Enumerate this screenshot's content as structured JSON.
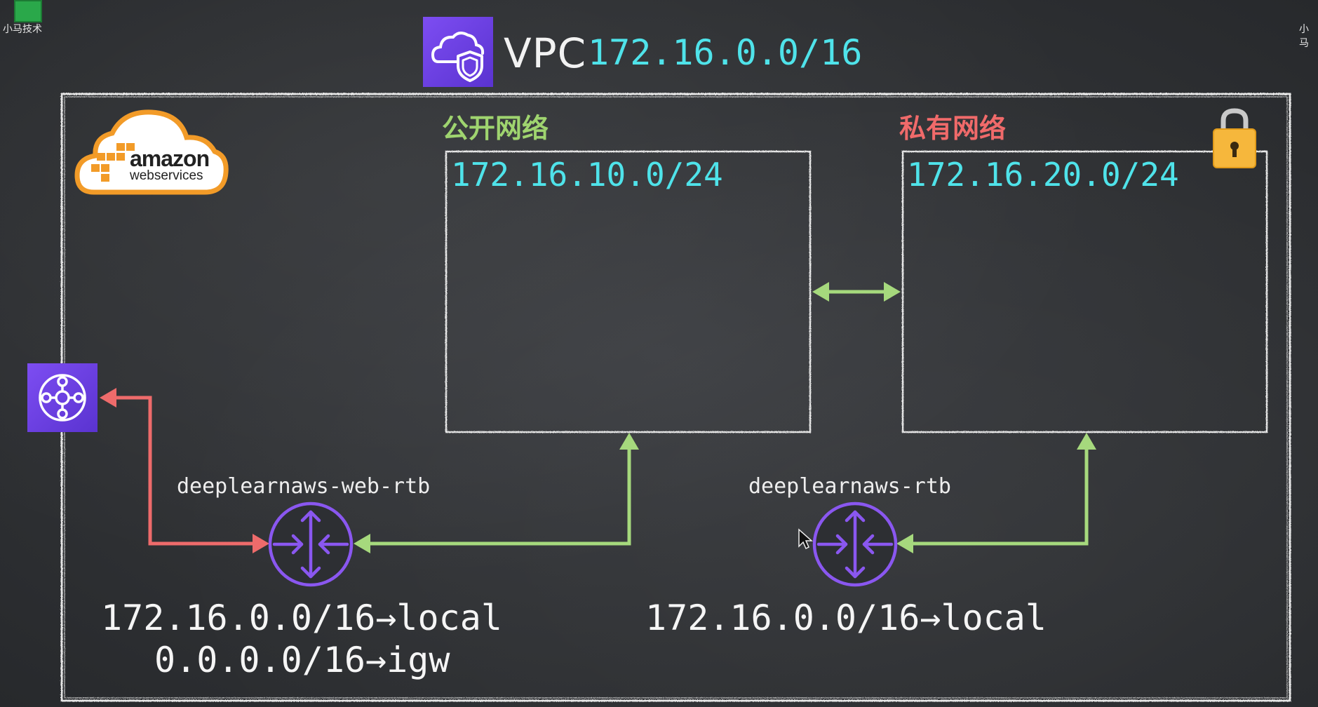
{
  "overlay": {
    "left_label": "小马技术",
    "right_label": "小马"
  },
  "vpc": {
    "title": "VPC",
    "cidr": "172.16.0.0/16",
    "icon": "vpc-cloud-shield-icon"
  },
  "logo": {
    "main": "amazon",
    "sub": "webservices",
    "icon": "aws-cloud-logo"
  },
  "public_subnet": {
    "title": "公开网络",
    "cidr": "172.16.10.0/24",
    "color": "#9fd46f"
  },
  "private_subnet": {
    "title": "私有网络",
    "cidr": "172.16.20.0/24",
    "color": "#f06a6a",
    "icon": "padlock-icon"
  },
  "internet_gateway": {
    "icon": "internet-gateway-icon"
  },
  "web_route_table": {
    "name": "deeplearnaws-web-rtb",
    "icon": "router-icon",
    "routes": [
      "172.16.0.0/16→local",
      "0.0.0.0/16→igw"
    ]
  },
  "private_route_table": {
    "name": "deeplearnaws-rtb",
    "icon": "router-icon",
    "routes": [
      "172.16.0.0/16→local"
    ]
  },
  "colors": {
    "background": "#2f3134",
    "cidr_text": "#4fe3ea",
    "arrow_green": "#a6d97d",
    "arrow_red": "#ee6b6b",
    "router_purple": "#8a57f0",
    "icon_purple": "#6c3fe0",
    "chalk": "#e6e6e6"
  }
}
